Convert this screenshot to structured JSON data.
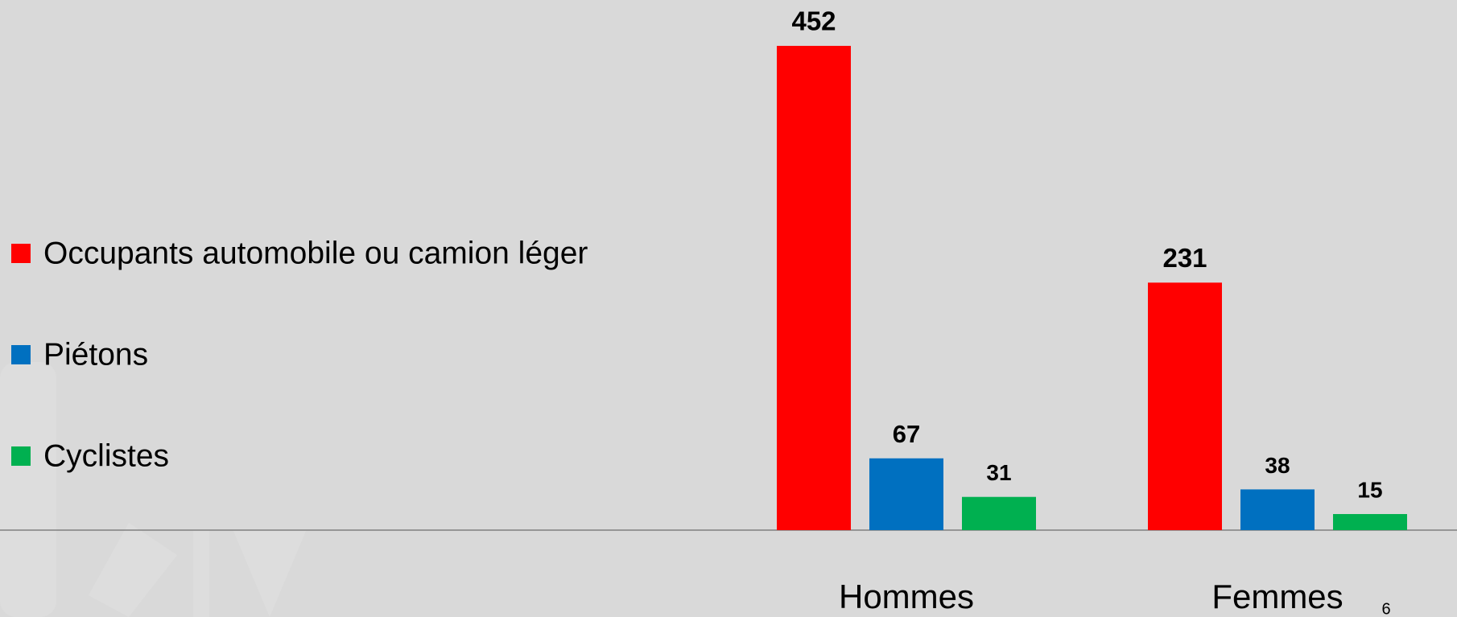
{
  "chart_data": {
    "type": "bar",
    "categories": [
      "Hommes",
      "Femmes"
    ],
    "series": [
      {
        "name": "Occupants automobile ou camion léger",
        "color": "#ff0000",
        "values": [
          452,
          231
        ]
      },
      {
        "name": "Piétons",
        "color": "#0070c0",
        "values": [
          67,
          38
        ]
      },
      {
        "name": "Cyclistes",
        "color": "#00b050",
        "values": [
          31,
          15
        ]
      }
    ],
    "legend": "left"
  },
  "slide_number": "6"
}
